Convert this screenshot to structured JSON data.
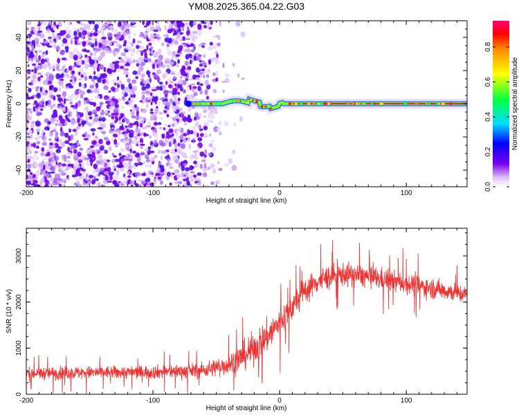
{
  "figure_title": "YM08.2025.365.04.22.G03",
  "chart_data": [
    {
      "type": "heatmap",
      "title": "YM08.2025.365.04.22.G03",
      "xlabel": "Height of straight line (km)",
      "ylabel": "Frequency (Hz)",
      "xlim": [
        -200,
        148
      ],
      "ylim": [
        -50,
        50
      ],
      "xticks": [
        -200,
        -100,
        0,
        100
      ],
      "xtick_labels": [
        "-200",
        "-100",
        "0",
        "100"
      ],
      "yticks": [
        -40,
        -20,
        0,
        20,
        40
      ],
      "ytick_labels": [
        "-40",
        "-20",
        "0",
        "20",
        "40"
      ],
      "colorbar": {
        "label": "Normalized spectral amplitude",
        "range": [
          0,
          0.95
        ],
        "ticks": [
          0,
          0.2,
          0.4,
          0.6,
          0.8
        ],
        "tick_labels": [
          "0.0",
          "0.2",
          "0.4",
          "0.6",
          "0.8"
        ]
      },
      "features": {
        "noise_region_km": [
          -200,
          -40
        ],
        "signal_line_start_km": -73,
        "signal_line_end_km": 148,
        "signal_frequency_hz": 0
      }
    },
    {
      "type": "line",
      "title": "",
      "xlabel": "Height of straight line (km)",
      "ylabel": "SNR (10 * v/v)",
      "xlim": [
        -200,
        148
      ],
      "ylim": [
        0,
        3600
      ],
      "xticks": [
        -200,
        -100,
        0,
        100
      ],
      "xtick_labels": [
        "-200",
        "-100",
        "0",
        "100"
      ],
      "yticks": [
        0,
        1000,
        2000,
        3000
      ],
      "ytick_labels": [
        "0",
        "1000",
        "2000",
        "3000"
      ],
      "series": [
        {
          "name": "SNR",
          "color": "#ee3333",
          "envelope_x": [
            -200,
            -150,
            -100,
            -60,
            -40,
            -30,
            -20,
            -10,
            0,
            10,
            20,
            30,
            40,
            50,
            60,
            70,
            80,
            90,
            100,
            110,
            120,
            130,
            140,
            148
          ],
          "envelope_mean": [
            450,
            470,
            480,
            520,
            650,
            800,
            1000,
            1250,
            1550,
            1900,
            2250,
            2450,
            2550,
            2600,
            2580,
            2550,
            2500,
            2450,
            2400,
            2350,
            2300,
            2250,
            2200,
            2150
          ],
          "envelope_halfwidth": [
            250,
            250,
            260,
            300,
            420,
            550,
            620,
            650,
            600,
            550,
            500,
            480,
            480,
            460,
            450,
            440,
            430,
            420,
            410,
            400,
            390,
            380,
            370,
            360
          ]
        }
      ]
    }
  ]
}
